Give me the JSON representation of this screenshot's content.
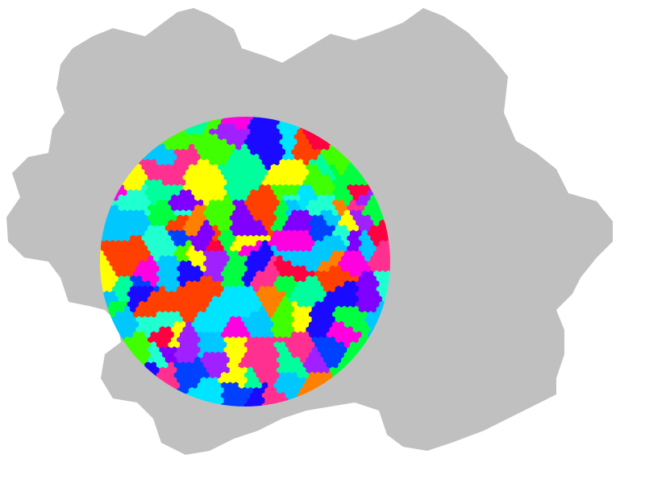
{
  "colors": {
    "background": "#ffffff",
    "hex_region": "#c0c0c0",
    "grain_palette": [
      "#ff0040",
      "#00ff40",
      "#40ff00",
      "#0040ff",
      "#00e5ff",
      "#ff00e0",
      "#8000ff",
      "#ffff00",
      "#ff8000",
      "#00ff9c",
      "#00c8ff",
      "#1a0aff",
      "#ff3090",
      "#20ffd0",
      "#ff4000",
      "#a020ff"
    ]
  },
  "figure": {
    "description_none": ""
  }
}
